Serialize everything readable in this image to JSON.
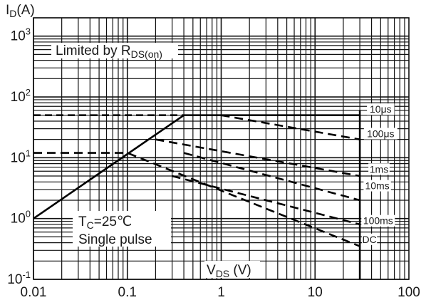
{
  "chart_data": {
    "type": "line",
    "y_axis_title": "I",
    "y_axis_title_sub": "D",
    "y_axis_title_unit": "(A)",
    "x_axis_title": "V",
    "x_axis_title_sub": "DS",
    "x_axis_title_unit": " (V)",
    "x_scale": "log",
    "y_scale": "log",
    "xlim": [
      0.01,
      100
    ],
    "ylim": [
      0.1,
      2000
    ],
    "grid": true,
    "x_ticks": [
      {
        "value": 0.01,
        "label": "0.01"
      },
      {
        "value": 0.1,
        "label": "0.1"
      },
      {
        "value": 1,
        "label": "1"
      },
      {
        "value": 10,
        "label": "10"
      },
      {
        "value": 100,
        "label": "100"
      }
    ],
    "y_ticks": [
      {
        "value": 0.1,
        "base": "10",
        "exp": "-1"
      },
      {
        "value": 1,
        "base": "10",
        "exp": "0"
      },
      {
        "value": 10,
        "base": "10",
        "exp": "1"
      },
      {
        "value": 100,
        "base": "10",
        "exp": "2"
      },
      {
        "value": 1000,
        "base": "10",
        "exp": "3"
      }
    ],
    "limit_label_prefix": "Limited by R",
    "limit_label_sub": "DS(on)",
    "conditions": {
      "tc_prefix": "T",
      "tc_sub": "C",
      "tc_value": "=25℃",
      "pulse": "Single pulse"
    },
    "rds_on_limit": {
      "style": "solid",
      "points": [
        [
          0.01,
          1.0
        ],
        [
          0.4,
          50
        ]
      ]
    },
    "current_limit": {
      "style": "dashed",
      "points": [
        [
          0.01,
          50
        ],
        [
          0.4,
          50
        ]
      ]
    },
    "series": [
      {
        "name": "10μs",
        "style": "solid",
        "points": [
          [
            0.4,
            50
          ],
          [
            30,
            50
          ]
        ]
      },
      {
        "name": "100μs",
        "style": "dashed",
        "points": [
          [
            1.0,
            50
          ],
          [
            30,
            20
          ]
        ]
      },
      {
        "name": "1ms",
        "style": "dashed",
        "points": [
          [
            0.2,
            20
          ],
          [
            30,
            5
          ]
        ]
      },
      {
        "name": "10ms",
        "style": "dashed",
        "points": [
          [
            0.4,
            12
          ],
          [
            30,
            2
          ]
        ]
      },
      {
        "name": "100ms",
        "style": "dashed",
        "points": [
          [
            0.3,
            5
          ],
          [
            30,
            0.8
          ]
        ]
      },
      {
        "name": "DC",
        "style": "dashed",
        "points": [
          [
            0.01,
            12
          ],
          [
            0.1,
            12
          ],
          [
            30,
            0.35
          ]
        ]
      }
    ],
    "series_label_positions": [
      {
        "name": "10μs",
        "at": [
          50,
          58
        ]
      },
      {
        "name": "100μs",
        "at": [
          50,
          23
        ]
      },
      {
        "name": "1ms",
        "at": [
          48,
          6.0
        ]
      },
      {
        "name": "10ms",
        "at": [
          46,
          3.2
        ]
      },
      {
        "name": "100ms",
        "at": [
          47,
          0.85
        ]
      },
      {
        "name": "DC",
        "at": [
          38,
          0.42
        ]
      }
    ],
    "vds_max_marker": 30
  }
}
